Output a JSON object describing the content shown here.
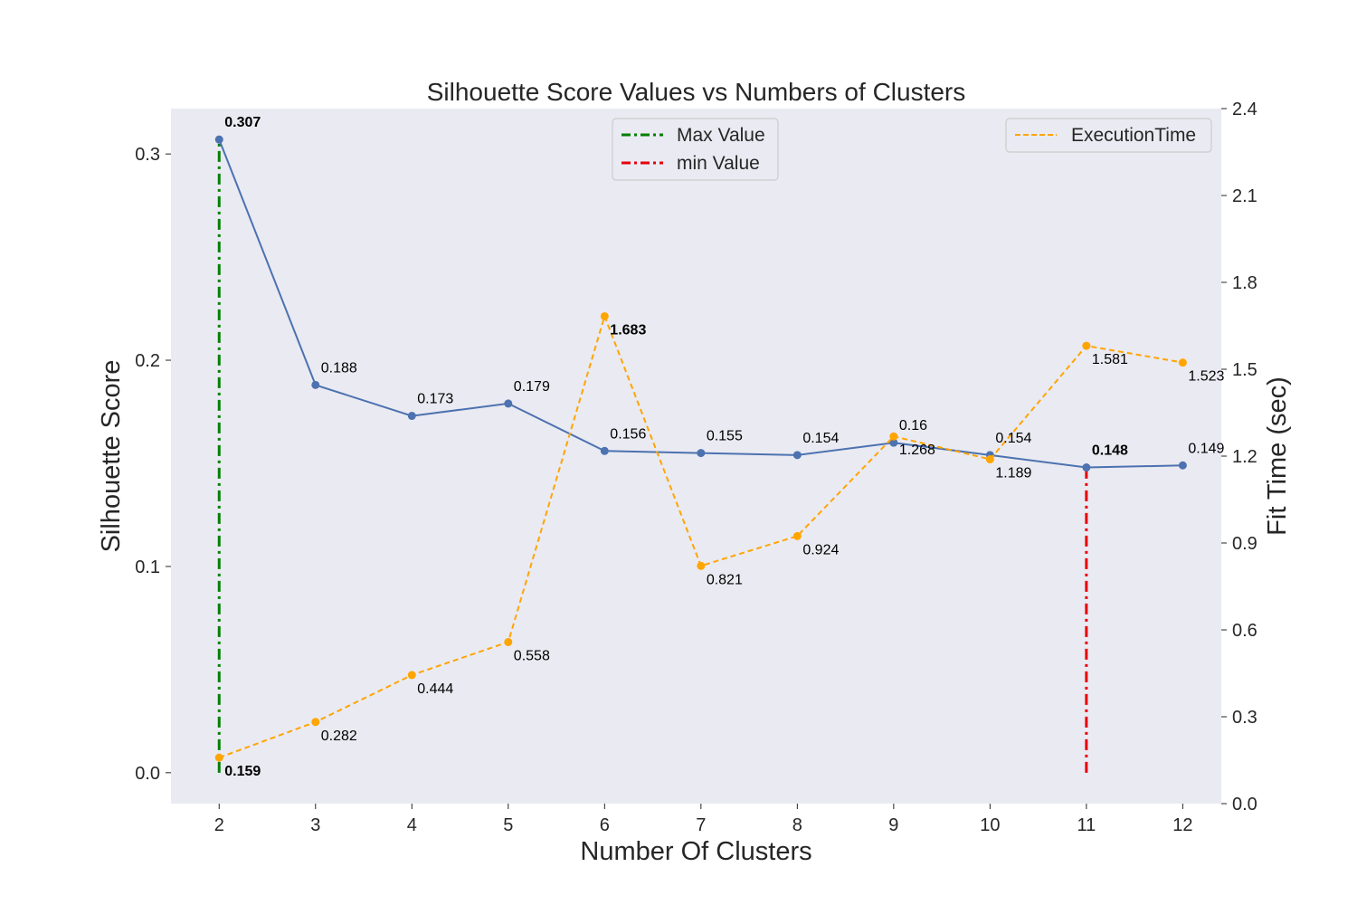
{
  "chart_data": {
    "type": "line",
    "title": "Silhouette Score Values vs Numbers of Clusters",
    "xlabel": "Number Of Clusters",
    "ylabel": "Silhouette Score",
    "y2label": "Fit Time (sec)",
    "x": [
      2,
      3,
      4,
      5,
      6,
      7,
      8,
      9,
      10,
      11,
      12
    ],
    "xlim": [
      1.5,
      12.4
    ],
    "ylim": [
      -0.015,
      0.322
    ],
    "y2lim": [
      0.0,
      2.4
    ],
    "yticks": [
      0.0,
      0.1,
      0.2,
      0.3
    ],
    "ytick_labels": [
      "0.0",
      "0.1",
      "0.2",
      "0.3"
    ],
    "y2ticks": [
      0.0,
      0.3,
      0.6,
      0.9,
      1.2,
      1.5,
      1.8,
      2.1,
      2.4
    ],
    "y2tick_labels": [
      "0.0",
      "0.3",
      "0.6",
      "0.9",
      "1.2",
      "1.5",
      "1.8",
      "2.1",
      "2.4"
    ],
    "grid": false,
    "series": [
      {
        "axis": "left",
        "values": [
          0.307,
          0.188,
          0.173,
          0.179,
          0.156,
          0.155,
          0.154,
          0.16,
          0.154,
          0.148,
          0.149
        ],
        "labels": [
          "0.307",
          "0.188",
          "0.173",
          "0.179",
          "0.156",
          "0.155",
          "0.154",
          "0.16",
          "0.154",
          "0.148",
          "0.149"
        ],
        "color": "#4c72b0",
        "style": "solid"
      },
      {
        "name": "ExecutionTime",
        "axis": "right",
        "values": [
          0.159,
          0.282,
          0.444,
          0.558,
          1.683,
          0.821,
          0.924,
          1.268,
          1.189,
          1.581,
          1.523
        ],
        "labels": [
          "0.159",
          "0.282",
          "0.444",
          "0.558",
          "1.683",
          "0.821",
          "0.924",
          "1.268",
          "1.189",
          "1.581",
          "1.523"
        ],
        "color": "#ffa500",
        "style": "dashed"
      }
    ],
    "highlights": {
      "silhouette_max_index": 0,
      "silhouette_min_index": 9,
      "time_max_index": 4,
      "time_min_index": 0
    },
    "reference_lines": [
      {
        "name": "Max Value",
        "x": 2,
        "from": 0.0,
        "to": 0.307,
        "color": "#008000",
        "style": "dashdot"
      },
      {
        "name": "min Value",
        "x": 11,
        "from": 0.0,
        "to": 0.148,
        "color": "#e8000b",
        "style": "dashdot"
      }
    ],
    "legends": [
      {
        "placement": "top-center",
        "entries": [
          "Max Value",
          "min Value"
        ]
      },
      {
        "placement": "top-right",
        "entries": [
          "ExecutionTime"
        ]
      }
    ],
    "colors": {
      "plot_background": "#eaeaf2",
      "max_highlight": "#008000",
      "min_highlight": "#e8000b"
    }
  }
}
